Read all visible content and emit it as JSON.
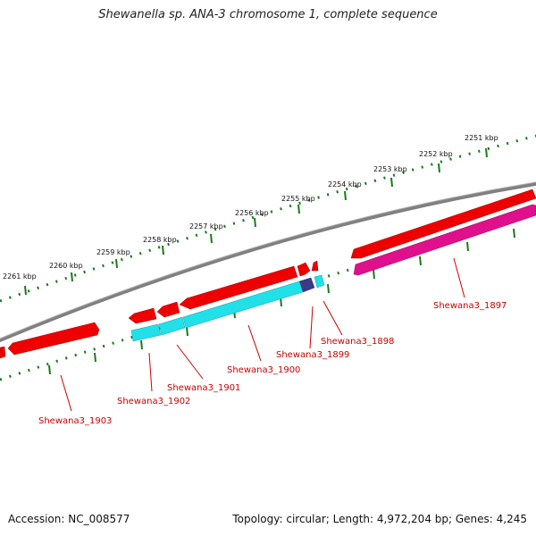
{
  "title": "Shewanella sp. ANA-3 chromosome 1, complete sequence",
  "accession": "Accession: NC_008577",
  "summary": "Topology: circular; Length: 4,972,204 bp; Genes: 4,245",
  "kbp_labels": [
    "2251 kbp",
    "2252 kbp",
    "2253 kbp",
    "2254 kbp",
    "2255 kbp",
    "2256 kbp",
    "2257 kbp",
    "2258 kbp",
    "2259 kbp",
    "2260 kbp",
    "2261 kbp"
  ],
  "gene_labels": [
    "Shewana3_1897",
    "Shewana3_1898",
    "Shewana3_1899",
    "Shewana3_1900",
    "Shewana3_1901",
    "Shewana3_1902",
    "Shewana3_1903"
  ],
  "colors": {
    "backbone": "#808080",
    "ticks": "#1a7a1a",
    "cds_forward": "#ee0000",
    "cds_reverse_cyan": "#22e0e8",
    "gene_magenta": "#e0108c",
    "gene_dark": "#3a3a8a",
    "label": "#cc0000"
  }
}
